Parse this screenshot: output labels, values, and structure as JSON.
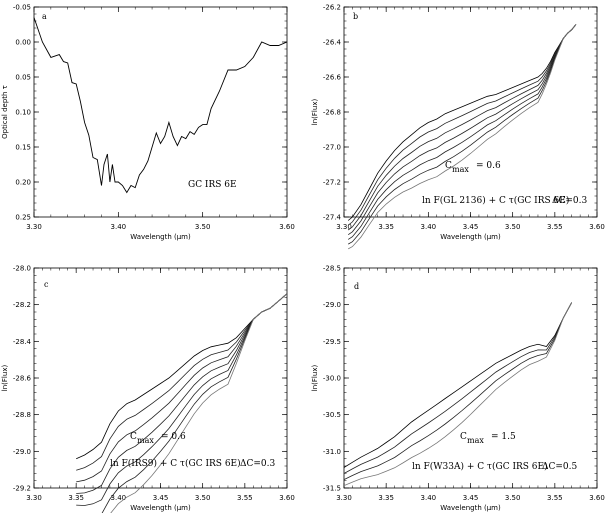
{
  "chart_data": [
    {
      "type": "line",
      "panel_label": "a",
      "xlabel": "Wavelength (μm)",
      "ylabel": "Optical depth τ",
      "xlim": [
        3.3,
        3.6
      ],
      "ylim": [
        0.25,
        -0.05
      ],
      "y_inverted": true,
      "x_ticks": [
        "3.30",
        "3.40",
        "3.50",
        "3.60"
      ],
      "y_ticks": [
        "-0.05",
        "0.00",
        "0.05",
        "0.10",
        "0.15",
        "0.20",
        "0.25"
      ],
      "annotations": [
        "GC IRS 6E"
      ],
      "series": [
        {
          "x": [
            3.3,
            3.31,
            3.32,
            3.33,
            3.335,
            3.34,
            3.345,
            3.35,
            3.355,
            3.36,
            3.365,
            3.37,
            3.375,
            3.38,
            3.383,
            3.387,
            3.39,
            3.393,
            3.396,
            3.4,
            3.405,
            3.41,
            3.415,
            3.42,
            3.425,
            3.43,
            3.435,
            3.44,
            3.445,
            3.45,
            3.455,
            3.46,
            3.465,
            3.47,
            3.475,
            3.48,
            3.485,
            3.49,
            3.495,
            3.5,
            3.505,
            3.51,
            3.52,
            3.53,
            3.54,
            3.55,
            3.56,
            3.57,
            3.58,
            3.59,
            3.6
          ],
          "y": [
            -0.035,
            0.0,
            0.022,
            0.018,
            0.028,
            0.03,
            0.058,
            0.06,
            0.085,
            0.115,
            0.133,
            0.165,
            0.168,
            0.205,
            0.175,
            0.16,
            0.2,
            0.175,
            0.2,
            0.2,
            0.205,
            0.215,
            0.205,
            0.208,
            0.19,
            0.182,
            0.17,
            0.15,
            0.13,
            0.145,
            0.135,
            0.115,
            0.135,
            0.148,
            0.135,
            0.138,
            0.128,
            0.132,
            0.122,
            0.118,
            0.118,
            0.095,
            0.07,
            0.04,
            0.04,
            0.035,
            0.022,
            0.0,
            0.005,
            0.005,
            0.0
          ]
        }
      ]
    },
    {
      "type": "line",
      "panel_label": "b",
      "xlabel": "Wavelength (μm)",
      "ylabel": "ln(Flux)",
      "xlim": [
        3.3,
        3.6
      ],
      "ylim": [
        -27.4,
        -26.2
      ],
      "x_ticks": [
        "3.30",
        "3.35",
        "3.40",
        "3.45",
        "3.50",
        "3.55",
        "3.60"
      ],
      "y_ticks": [
        "-26.2",
        "-26.4",
        "-26.6",
        "-26.8",
        "-27.0",
        "-27.2",
        "-27.4"
      ],
      "annotations": [
        "C",
        "max",
        "= 0.6",
        "ln F(GL 2136) + C  τ(GC IRS 6E)",
        "ΔC=0.3"
      ],
      "curve_offset_c": [
        0,
        1,
        2,
        3,
        4,
        5,
        6
      ],
      "base_series": {
        "x": [
          3.305,
          3.31,
          3.32,
          3.33,
          3.34,
          3.35,
          3.36,
          3.37,
          3.38,
          3.39,
          3.4,
          3.41,
          3.42,
          3.43,
          3.44,
          3.45,
          3.46,
          3.47,
          3.48,
          3.49,
          3.5,
          3.51,
          3.52,
          3.53,
          3.535,
          3.54,
          3.545,
          3.55,
          3.555,
          3.56,
          3.565,
          3.57,
          3.575
        ],
        "y": [
          -27.42,
          -27.4,
          -27.33,
          -27.24,
          -27.15,
          -27.08,
          -27.02,
          -26.97,
          -26.93,
          -26.89,
          -26.86,
          -26.84,
          -26.81,
          -26.79,
          -26.77,
          -26.75,
          -26.73,
          -26.71,
          -26.7,
          -26.68,
          -26.66,
          -26.64,
          -26.62,
          -26.6,
          -26.58,
          -26.55,
          -26.51,
          -26.46,
          -26.42,
          -26.38,
          -26.35,
          -26.33,
          -26.3
        ]
      }
    },
    {
      "type": "line",
      "panel_label": "c",
      "xlabel": "Wavelength (μm)",
      "ylabel": "ln(Flux)",
      "xlim": [
        3.3,
        3.6
      ],
      "ylim": [
        -29.2,
        -28.0
      ],
      "x_ticks": [
        "3.30",
        "3.35",
        "3.40",
        "3.45",
        "3.50",
        "3.55",
        "3.60"
      ],
      "y_ticks": [
        "-28.0",
        "-28.2",
        "-28.4",
        "-28.6",
        "-28.8",
        "-29.0",
        "-29.2"
      ],
      "annotations": [
        "C",
        "max",
        "= 0.6",
        "ln F(IRS9) + C  τ(GC IRS 6E)",
        "ΔC=0.3"
      ],
      "curve_offset_c": [
        0,
        1,
        2,
        3,
        4,
        5,
        6
      ],
      "base_series": {
        "x": [
          3.35,
          3.36,
          3.37,
          3.38,
          3.39,
          3.4,
          3.41,
          3.42,
          3.43,
          3.44,
          3.45,
          3.46,
          3.47,
          3.48,
          3.49,
          3.5,
          3.51,
          3.52,
          3.53,
          3.54,
          3.55,
          3.56,
          3.57,
          3.58,
          3.59,
          3.6
        ],
        "y": [
          -29.04,
          -29.02,
          -28.99,
          -28.95,
          -28.85,
          -28.78,
          -28.74,
          -28.72,
          -28.69,
          -28.66,
          -28.63,
          -28.6,
          -28.56,
          -28.52,
          -28.48,
          -28.45,
          -28.43,
          -28.42,
          -28.41,
          -28.38,
          -28.33,
          -28.28,
          -28.24,
          -28.22,
          -28.18,
          -28.14
        ]
      }
    },
    {
      "type": "line",
      "panel_label": "d",
      "xlabel": "Wavelength (μm)",
      "ylabel": "ln(Flux)",
      "xlim": [
        3.3,
        3.6
      ],
      "ylim": [
        -31.5,
        -28.5
      ],
      "x_ticks": [
        "3.30",
        "3.35",
        "3.40",
        "3.45",
        "3.50",
        "3.55",
        "3.60"
      ],
      "y_ticks": [
        "-28.5",
        "-29.0",
        "-29.5",
        "-30.0",
        "-30.5",
        "-31.0",
        "-31.5"
      ],
      "annotations": [
        "C",
        "max",
        "= 1.5",
        "ln F(W33A) + C  τ(GC IRS 6E)",
        "ΔC=0.5"
      ],
      "curve_offset_c": [
        0,
        1,
        2,
        3
      ],
      "base_series": {
        "x": [
          3.3,
          3.31,
          3.32,
          3.33,
          3.34,
          3.35,
          3.36,
          3.37,
          3.38,
          3.39,
          3.4,
          3.41,
          3.42,
          3.43,
          3.44,
          3.45,
          3.46,
          3.47,
          3.48,
          3.49,
          3.5,
          3.51,
          3.52,
          3.53,
          3.54,
          3.55,
          3.56,
          3.57
        ],
        "y": [
          -31.22,
          -31.15,
          -31.08,
          -31.02,
          -30.96,
          -30.88,
          -30.8,
          -30.7,
          -30.6,
          -30.52,
          -30.44,
          -30.36,
          -30.28,
          -30.2,
          -30.12,
          -30.04,
          -29.96,
          -29.88,
          -29.8,
          -29.74,
          -29.68,
          -29.62,
          -29.57,
          -29.54,
          -29.57,
          -29.42,
          -29.18,
          -28.97
        ]
      }
    }
  ]
}
